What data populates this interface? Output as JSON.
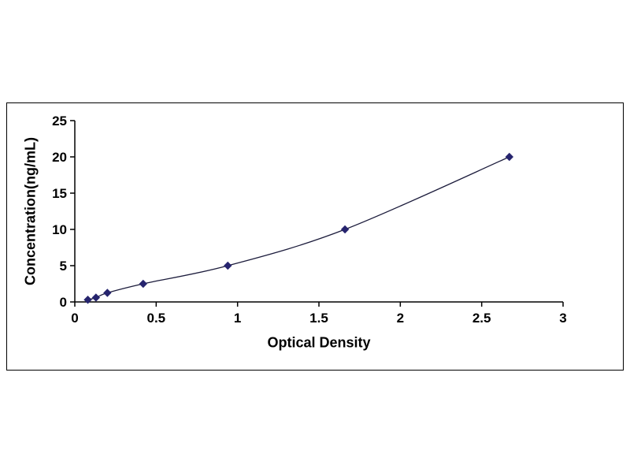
{
  "chart_data": {
    "type": "line",
    "title": "",
    "xlabel": "Optical Density",
    "ylabel": "Concentration(ng/mL)",
    "x": [
      0.08,
      0.13,
      0.2,
      0.42,
      0.94,
      1.66,
      2.67
    ],
    "y": [
      0.3,
      0.6,
      1.25,
      2.5,
      5,
      10,
      20
    ],
    "xlim": [
      0,
      3
    ],
    "ylim": [
      0,
      25
    ],
    "xticks": [
      0,
      0.5,
      1,
      1.5,
      2,
      2.5,
      3
    ],
    "xtick_labels": [
      "0",
      "0.5",
      "1",
      "1.5",
      "2",
      "2.5",
      "3"
    ],
    "yticks": [
      0,
      5,
      10,
      15,
      20,
      25
    ],
    "ytick_labels": [
      "0",
      "5",
      "10",
      "15",
      "20",
      "25"
    ],
    "marker": "diamond",
    "legend": "none",
    "grid": false,
    "colors": {
      "line": "#1c1c3c",
      "marker": "#26246e",
      "axis": "#000000",
      "frame": "#000000",
      "background": "#ffffff"
    }
  }
}
